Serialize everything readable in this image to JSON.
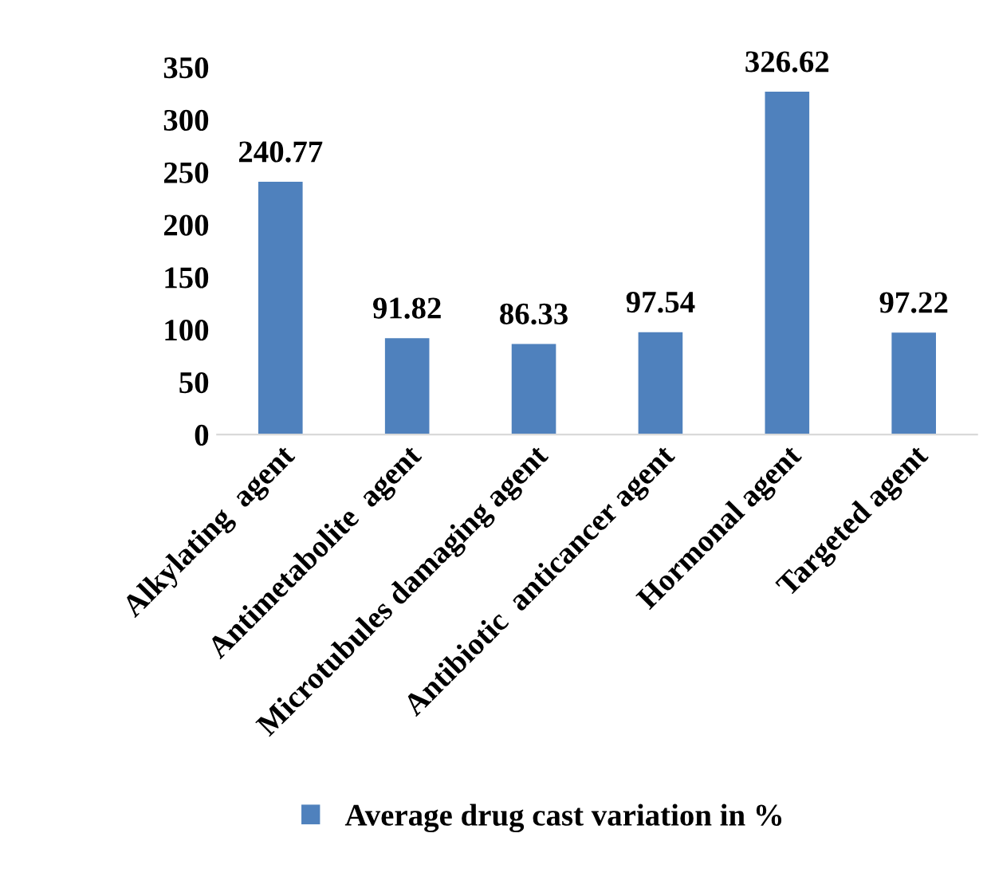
{
  "chart_data": {
    "type": "bar",
    "categories": [
      "Alkylating  agent",
      "Antimetabolite  agent",
      "Microtubules damaging agent",
      "Antibiotic  anticancer agent",
      "Hormonal agent",
      "Targeted agent"
    ],
    "series": [
      {
        "name": "Average drug cast variation in %",
        "color": "#4f81bd",
        "values": [
          240.77,
          91.82,
          86.33,
          97.54,
          326.62,
          97.22
        ]
      }
    ],
    "ylim": [
      0,
      350
    ],
    "yticks": [
      0,
      50,
      100,
      150,
      200,
      250,
      300,
      350
    ],
    "data_labels": true,
    "grid": false,
    "legend": "bottom"
  }
}
